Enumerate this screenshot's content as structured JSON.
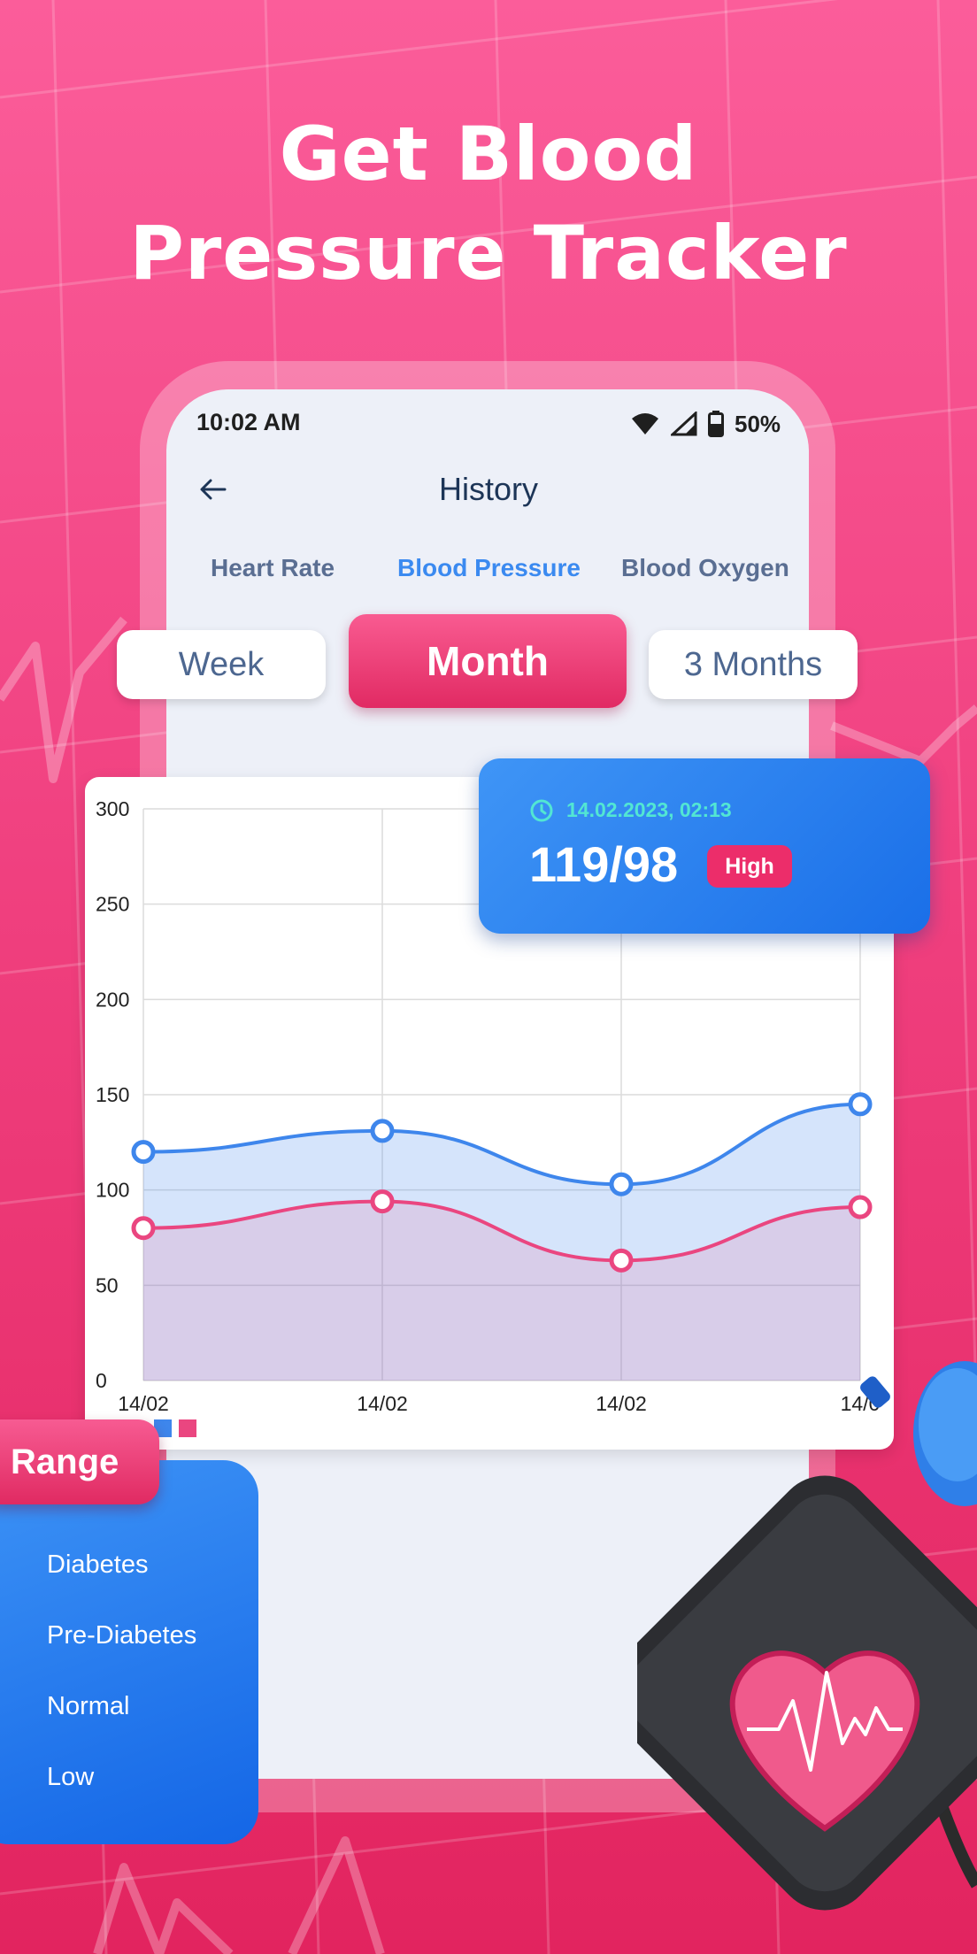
{
  "colors": {
    "accent_pink": "#e8336d",
    "accent_blue": "#1a6fe8",
    "systolic_line": "#3e86ec",
    "diastolic_line": "#ea4680",
    "teal_text": "#52e6d3"
  },
  "headline": {
    "line1": "Get Blood",
    "line2": "Pressure Tracker"
  },
  "status_bar": {
    "time": "10:02 AM",
    "battery": "50%",
    "icons": [
      "wifi-icon",
      "signal-icon",
      "battery-icon"
    ]
  },
  "header": {
    "title": "History",
    "back_icon": "arrow-left-icon"
  },
  "tabs": [
    {
      "label": "Heart Rate",
      "active": false
    },
    {
      "label": "Blood Pressure",
      "active": true
    },
    {
      "label": "Blood Oxygen",
      "active": false
    }
  ],
  "periods": [
    {
      "label": "Week",
      "active": false
    },
    {
      "label": "Month",
      "active": true
    },
    {
      "label": "3 Months",
      "active": false
    }
  ],
  "reading": {
    "datetime": "14.02.2023, 02:13",
    "value": "119/98",
    "status": "High",
    "icon": "clock-icon"
  },
  "chart_data": {
    "type": "area",
    "categories": [
      "14/02",
      "14/02",
      "14/02",
      "14/0"
    ],
    "ylim": [
      0,
      300
    ],
    "yticks": [
      0,
      50,
      100,
      150,
      200,
      250,
      300
    ],
    "grid": true,
    "legend": "bottom-left",
    "series": [
      {
        "values": [
          120,
          131,
          103,
          145
        ],
        "color": "#3e86ec"
      },
      {
        "values": [
          80,
          94,
          63,
          91
        ],
        "color": "#ea4680"
      }
    ]
  },
  "range": {
    "tag": "Range",
    "items": [
      "Diabetes",
      "Pre-Diabetes",
      "Normal",
      "Low"
    ]
  }
}
